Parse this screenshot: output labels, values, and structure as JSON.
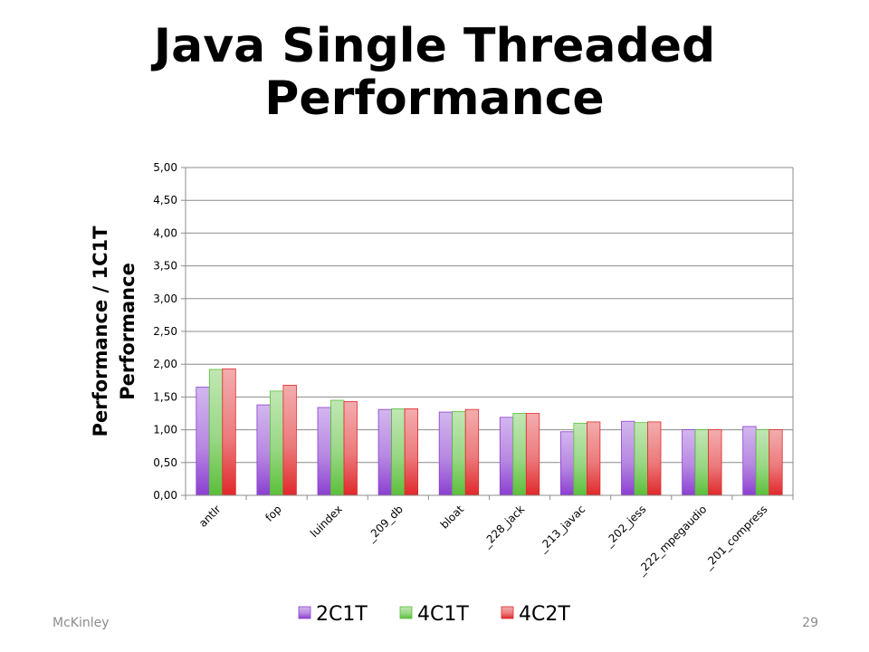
{
  "slide": {
    "title_line1": "Java Single Threaded",
    "title_line2": "Performance",
    "footer_left": "McKinley",
    "page_number": "29"
  },
  "colors": {
    "2C1T": "#8b3fd1",
    "4C1T": "#5bbf3a",
    "4C2T": "#e0282b"
  },
  "chart_data": {
    "type": "bar",
    "categories": [
      "antlr",
      "fop",
      "luindex",
      "_209_db",
      "bloat",
      "_228_jack",
      "_213_javac",
      "_202_jess",
      "_222_mpegaudio",
      "_201_compress"
    ],
    "series": [
      {
        "name": "2C1T",
        "values": [
          1.65,
          1.38,
          1.34,
          1.31,
          1.27,
          1.19,
          0.97,
          1.13,
          1.0,
          1.05
        ]
      },
      {
        "name": "4C1T",
        "values": [
          1.92,
          1.59,
          1.45,
          1.32,
          1.28,
          1.25,
          1.1,
          1.11,
          1.0,
          1.0
        ]
      },
      {
        "name": "4C2T",
        "values": [
          1.93,
          1.68,
          1.43,
          1.32,
          1.31,
          1.25,
          1.12,
          1.12,
          1.0,
          1.0
        ]
      }
    ],
    "ylabel_line1": "Performance / 1C1T",
    "ylabel_line2": "Performance",
    "xlabel": "",
    "ylim": [
      0,
      5
    ],
    "yticks": [
      "0,00",
      "0,50",
      "1,00",
      "1,50",
      "2,00",
      "2,50",
      "3,00",
      "3,50",
      "4,00",
      "4,50",
      "5,00"
    ],
    "grid": true,
    "legend_position": "bottom"
  }
}
